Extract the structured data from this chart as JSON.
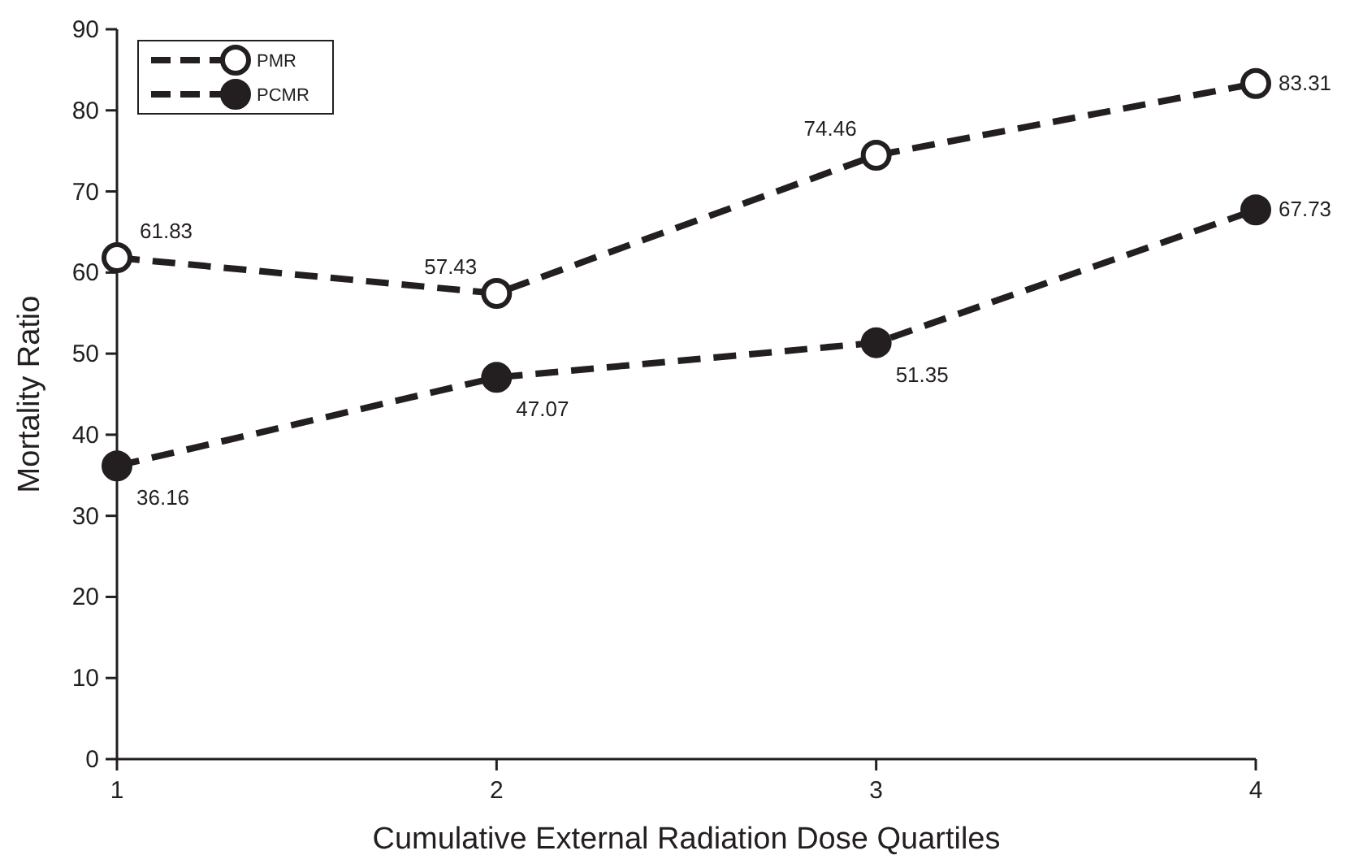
{
  "chart_data": {
    "type": "line",
    "xlabel": "Cumulative External Radiation Dose Quartiles",
    "ylabel": "Mortality Ratio",
    "x": [
      1,
      2,
      3,
      4
    ],
    "xlim": [
      1,
      4
    ],
    "xticks": [
      1,
      2,
      3,
      4
    ],
    "ylim": [
      0,
      90
    ],
    "yticks": [
      0,
      10,
      20,
      30,
      40,
      50,
      60,
      70,
      80,
      90
    ],
    "series": [
      {
        "name": "PMR",
        "color": "#231f20",
        "marker": "circle-open",
        "values": [
          61.83,
          57.43,
          74.46,
          83.31
        ]
      },
      {
        "name": "PCMR",
        "color": "#231f20",
        "values": [
          36.16,
          47.07,
          51.35,
          67.73
        ]
      }
    ],
    "marker": "circle",
    "line_style": "dashed",
    "data_labels": true,
    "legend": "top left",
    "grid": false
  }
}
